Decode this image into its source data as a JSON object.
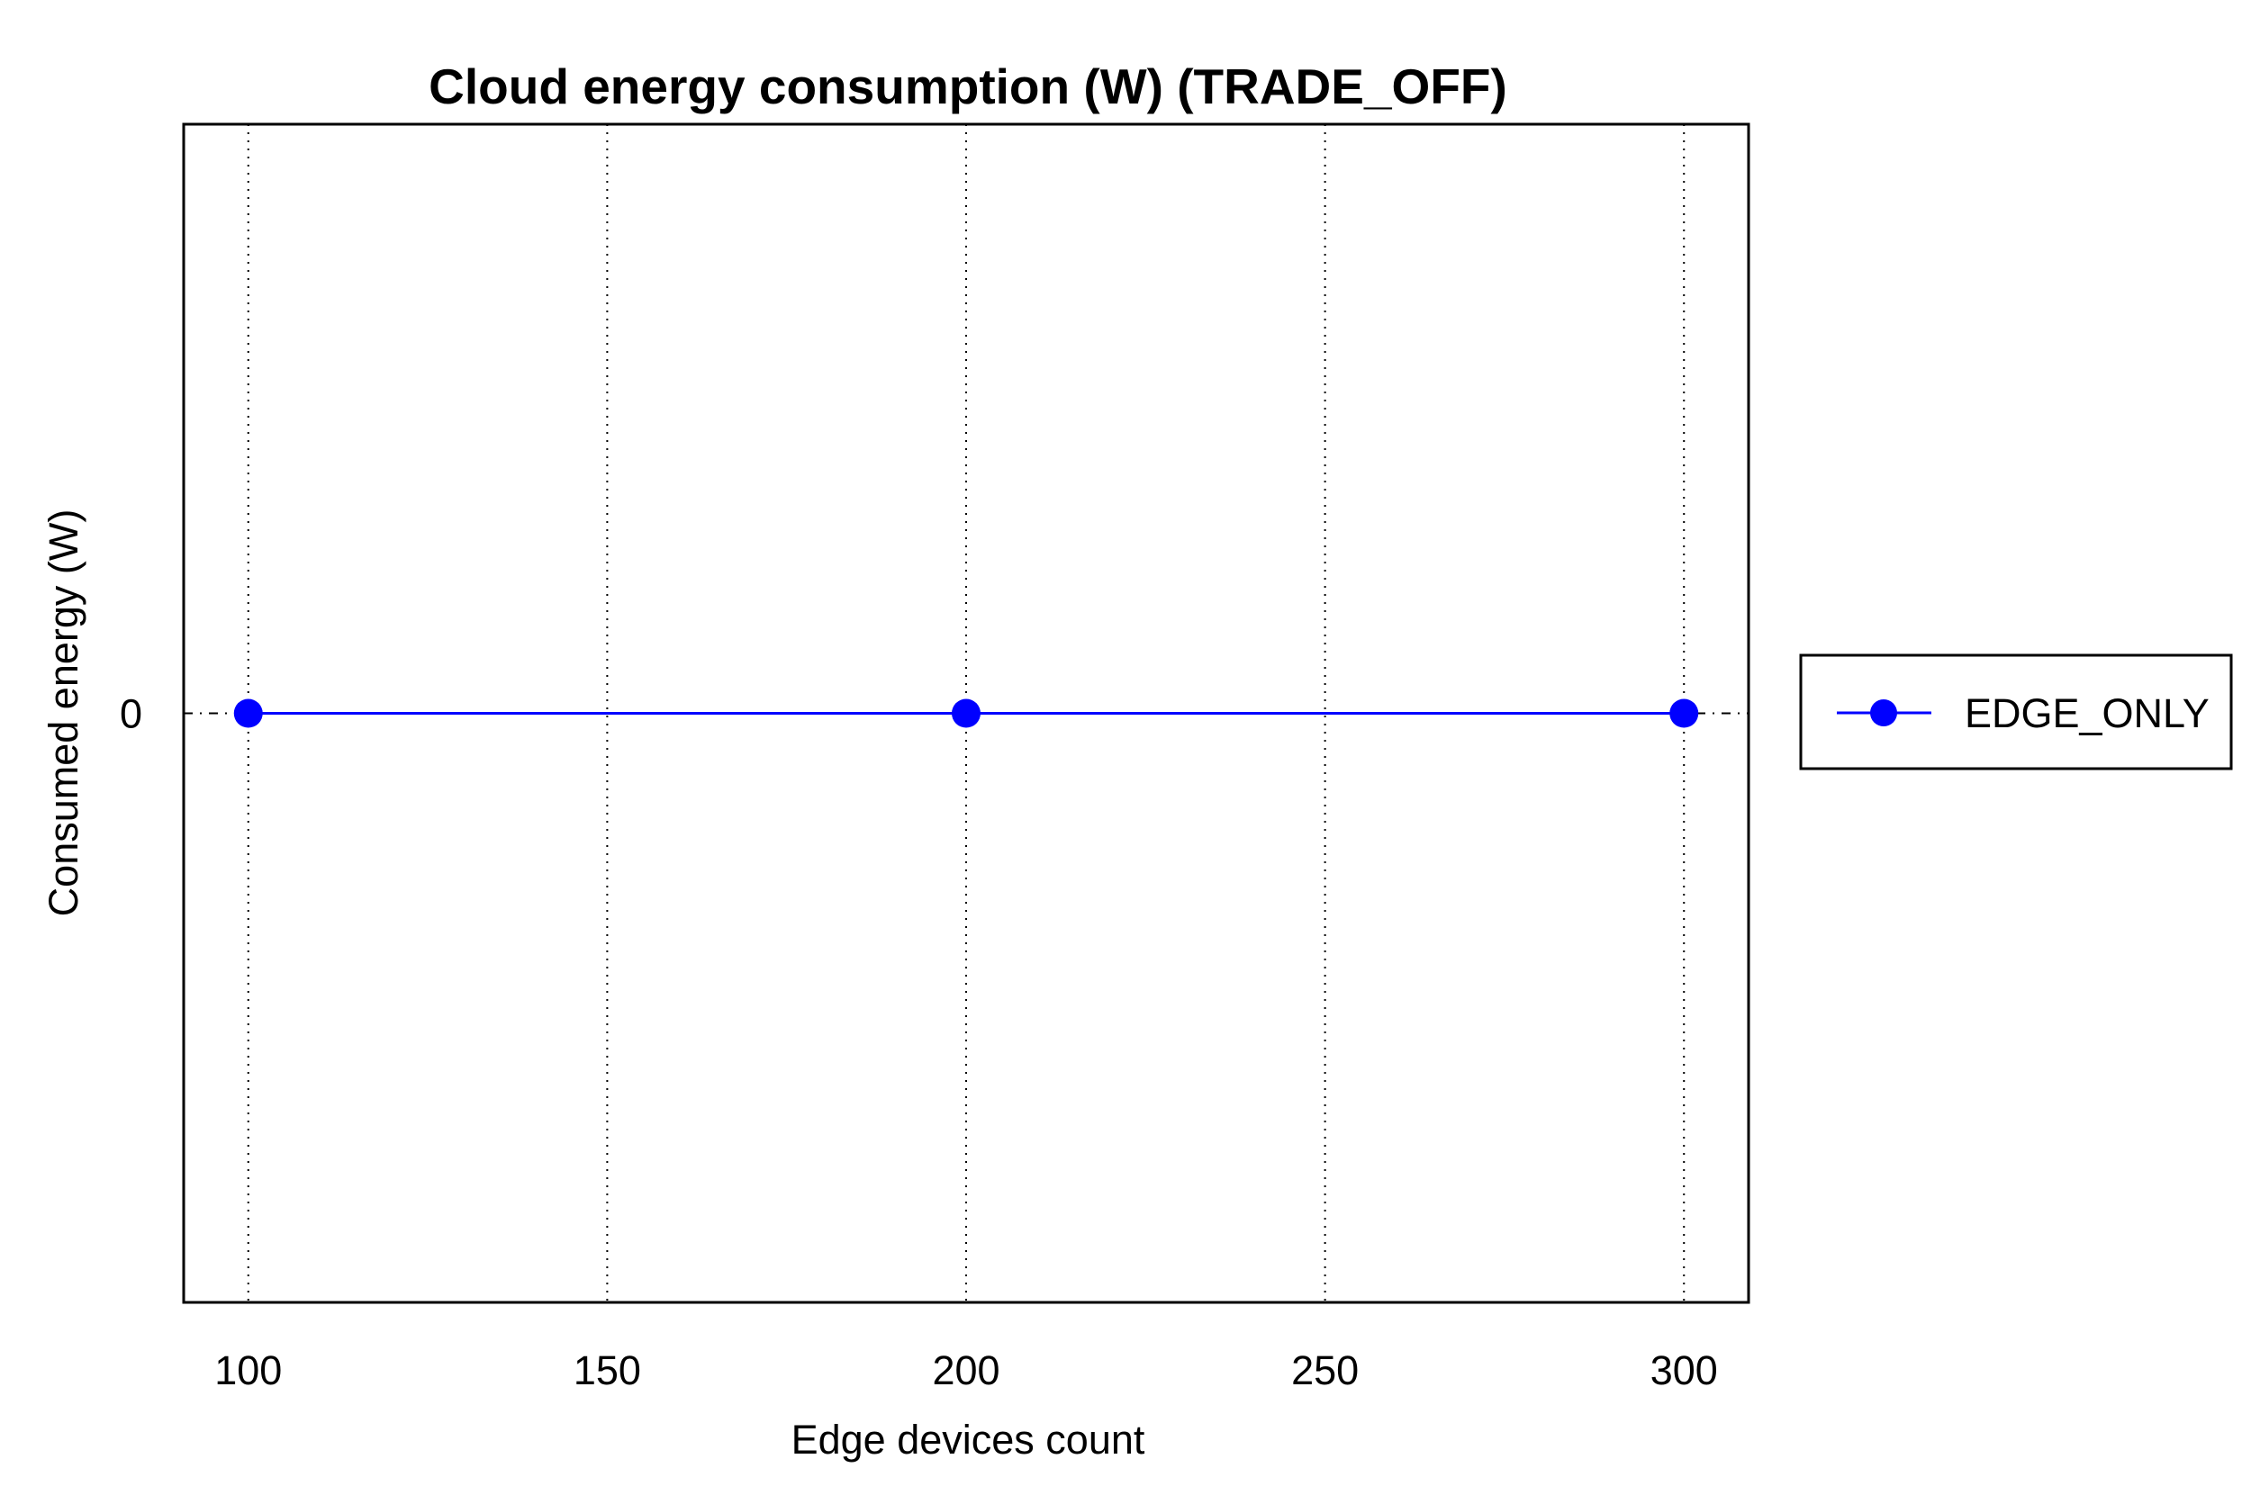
{
  "chart_data": {
    "type": "line",
    "title": "Cloud energy consumption (W) (TRADE_OFF)",
    "xlabel": "Edge devices count",
    "ylabel": "Consumed energy (W)",
    "x_ticks": [
      100,
      150,
      200,
      250,
      300
    ],
    "y_ticks": [
      0
    ],
    "xlim": [
      91,
      309
    ],
    "ylim": [
      -1,
      1
    ],
    "grid": "vertical dotted",
    "legend_position": "outside right",
    "series": [
      {
        "name": "EDGE_ONLY",
        "color": "#0000ff",
        "marker": "circle",
        "x": [
          100,
          200,
          300
        ],
        "y": [
          0,
          0,
          0
        ]
      }
    ]
  }
}
